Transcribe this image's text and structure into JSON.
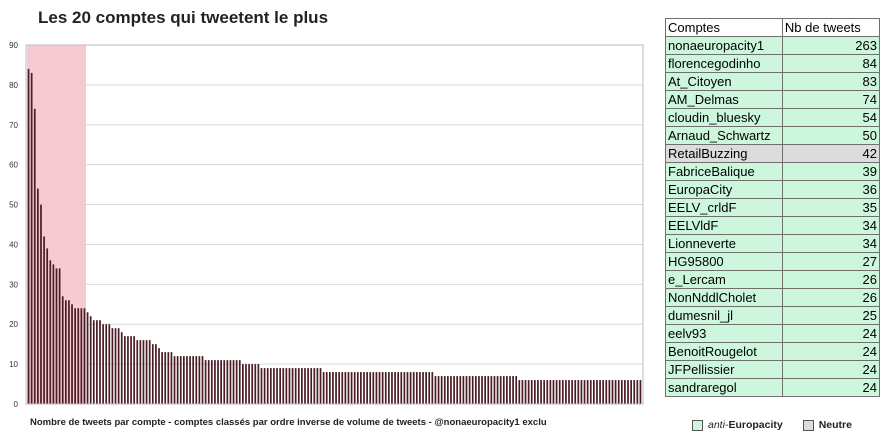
{
  "colors": {
    "bar": "#4a1c24",
    "highlight": "#f7c9d2",
    "grid": "#d9d9d9",
    "anti": "#ccf7dd",
    "neutre": "#dcdcdc"
  },
  "chart_data": {
    "type": "bar",
    "title": "Les 20 comptes qui tweetent le plus",
    "xlabel": "Nombre de tweets par compte - comptes classés par ordre inverse de volume de tweets - @nonaeuropacity1 exclu",
    "ylabel": "",
    "ylim": [
      0,
      90
    ],
    "yticks": [
      0,
      10,
      20,
      30,
      40,
      50,
      60,
      70,
      80,
      90
    ],
    "grid": true,
    "highlighted_first_n": 19,
    "values": [
      84,
      83,
      74,
      54,
      50,
      42,
      39,
      36,
      35,
      34,
      34,
      27,
      26,
      26,
      25,
      24,
      24,
      24,
      24,
      23,
      22,
      21,
      21,
      21,
      20,
      20,
      20,
      19,
      19,
      19,
      18,
      17,
      17,
      17,
      17,
      16,
      16,
      16,
      16,
      16,
      15,
      15,
      14,
      13,
      13,
      13,
      13,
      12,
      12,
      12,
      12,
      12,
      12,
      12,
      12,
      12,
      12,
      11,
      11,
      11,
      11,
      11,
      11,
      11,
      11,
      11,
      11,
      11,
      11,
      10,
      10,
      10,
      10,
      10,
      10,
      9,
      9,
      9,
      9,
      9,
      9,
      9,
      9,
      9,
      9,
      9,
      9,
      9,
      9,
      9,
      9,
      9,
      9,
      9,
      9,
      8,
      8,
      8,
      8,
      8,
      8,
      8,
      8,
      8,
      8,
      8,
      8,
      8,
      8,
      8,
      8,
      8,
      8,
      8,
      8,
      8,
      8,
      8,
      8,
      8,
      8,
      8,
      8,
      8,
      8,
      8,
      8,
      8,
      8,
      8,
      8,
      7,
      7,
      7,
      7,
      7,
      7,
      7,
      7,
      7,
      7,
      7,
      7,
      7,
      7,
      7,
      7,
      7,
      7,
      7,
      7,
      7,
      7,
      7,
      7,
      7,
      7,
      7,
      6,
      6,
      6,
      6,
      6,
      6,
      6,
      6,
      6,
      6,
      6,
      6,
      6,
      6,
      6,
      6,
      6,
      6,
      6,
      6,
      6,
      6,
      6,
      6,
      6,
      6,
      6,
      6,
      6,
      6,
      6,
      6,
      6,
      6,
      6,
      6,
      6,
      6,
      6,
      6
    ]
  },
  "table": {
    "headers": [
      "Comptes",
      "Nb de tweets"
    ],
    "rows": [
      {
        "name": "nonaeuropacity1",
        "count": "263",
        "category": "anti"
      },
      {
        "name": "florencegodinho",
        "count": "84",
        "category": "anti"
      },
      {
        "name": "At_Citoyen",
        "count": "83",
        "category": "anti"
      },
      {
        "name": "AM_Delmas",
        "count": "74",
        "category": "anti"
      },
      {
        "name": "cloudin_bluesky",
        "count": "54",
        "category": "anti"
      },
      {
        "name": "Arnaud_Schwartz",
        "count": "50",
        "category": "anti"
      },
      {
        "name": "RetailBuzzing",
        "count": "42",
        "category": "neutre"
      },
      {
        "name": "FabriceBalique",
        "count": "39",
        "category": "anti"
      },
      {
        "name": "EuropaCity",
        "count": "36",
        "category": "anti"
      },
      {
        "name": "EELV_crldF",
        "count": "35",
        "category": "anti"
      },
      {
        "name": "EELVldF",
        "count": "34",
        "category": "anti"
      },
      {
        "name": "Lionneverte",
        "count": "34",
        "category": "anti"
      },
      {
        "name": "HG95800",
        "count": "27",
        "category": "anti"
      },
      {
        "name": "e_Lercam",
        "count": "26",
        "category": "anti"
      },
      {
        "name": "NonNddlCholet",
        "count": "26",
        "category": "anti"
      },
      {
        "name": "dumesnil_jl",
        "count": "25",
        "category": "anti"
      },
      {
        "name": "eelv93",
        "count": "24",
        "category": "anti"
      },
      {
        "name": "BenoitRougelot",
        "count": "24",
        "category": "anti"
      },
      {
        "name": "JFPellissier",
        "count": "24",
        "category": "anti"
      },
      {
        "name": "sandraregol",
        "count": "24",
        "category": "anti"
      }
    ]
  },
  "legend": {
    "anti_prefix": "anti-",
    "anti_rest": "Europacity",
    "neutre": "Neutre"
  }
}
